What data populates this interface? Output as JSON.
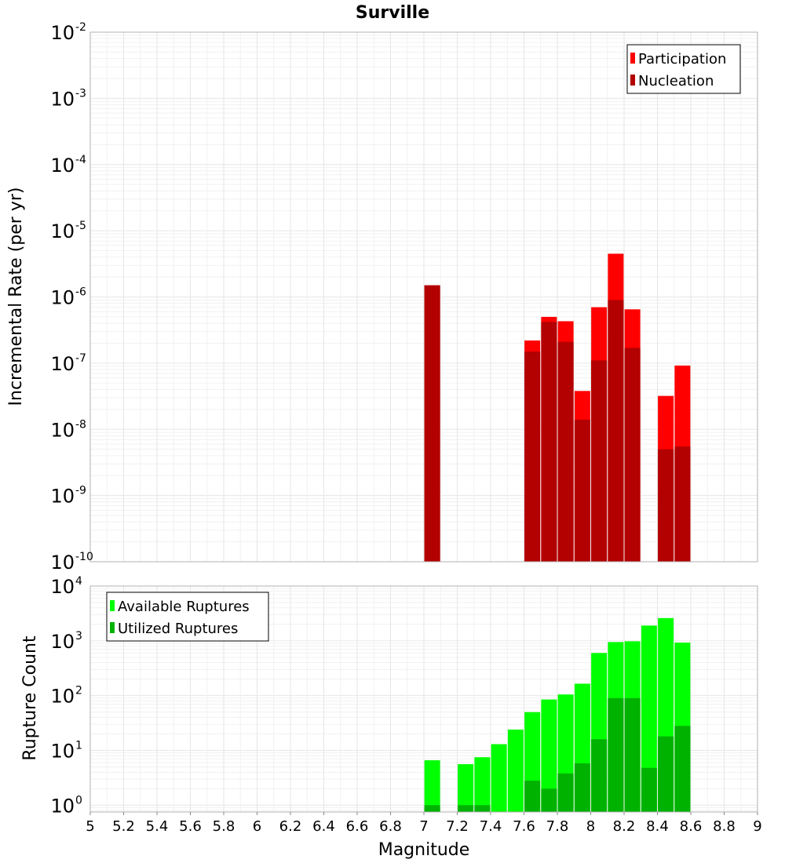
{
  "title": "Surville",
  "xlabel": "Magnitude",
  "colors": {
    "participation": "#ff0000",
    "nucleation": "#b30000",
    "available": "#00ff00",
    "utilized": "#00b200"
  },
  "chart_data": [
    {
      "type": "bar",
      "panel": "top",
      "ylabel": "Incremental Rate (per yr)",
      "yscale": "log",
      "ylim": [
        1e-10,
        0.01
      ],
      "xlim": [
        5,
        9
      ],
      "legend": {
        "placement": "top-right",
        "entries": [
          "Participation",
          "Nucleation"
        ]
      },
      "series": [
        {
          "name": "Participation",
          "x": [
            7.05,
            7.65,
            7.75,
            7.85,
            7.95,
            8.05,
            8.15,
            8.25,
            8.45,
            8.55
          ],
          "values": [
            1.5e-06,
            2.2e-07,
            5e-07,
            4.3e-07,
            3.8e-08,
            7e-07,
            4.5e-06,
            6.5e-07,
            3.2e-08,
            9.2e-08
          ]
        },
        {
          "name": "Nucleation",
          "x": [
            7.05,
            7.65,
            7.75,
            7.85,
            7.95,
            8.05,
            8.15,
            8.25,
            8.45,
            8.55
          ],
          "values": [
            1.5e-06,
            1.5e-07,
            4.2e-07,
            2.1e-07,
            1.4e-08,
            1.1e-07,
            9e-07,
            1.7e-07,
            5e-09,
            5.5e-09
          ]
        }
      ]
    },
    {
      "type": "bar",
      "panel": "bottom",
      "ylabel": "Rupture Count",
      "yscale": "log",
      "ylim": [
        0.75,
        10000
      ],
      "xlim": [
        5,
        9
      ],
      "legend": {
        "placement": "top-left",
        "entries": [
          "Available Ruptures",
          "Utilized Ruptures"
        ]
      },
      "series": [
        {
          "name": "Available Ruptures",
          "x": [
            7.05,
            7.25,
            7.35,
            7.45,
            7.55,
            7.65,
            7.75,
            7.85,
            7.95,
            8.05,
            8.15,
            8.25,
            8.35,
            8.45,
            8.55
          ],
          "values": [
            6.6,
            5.6,
            7.5,
            13,
            24,
            50,
            85,
            105,
            165,
            600,
            950,
            980,
            1900,
            2600,
            930
          ]
        },
        {
          "name": "Utilized Ruptures",
          "x": [
            7.05,
            7.25,
            7.35,
            7.65,
            7.75,
            7.85,
            7.95,
            8.05,
            8.15,
            8.25,
            8.35,
            8.45,
            8.55
          ],
          "values": [
            1,
            1,
            1,
            2.8,
            2,
            3.8,
            5.8,
            16,
            90,
            90,
            4.8,
            18,
            28
          ]
        }
      ]
    }
  ],
  "x_ticks": [
    "5",
    "5.2",
    "5.4",
    "5.6",
    "5.8",
    "6",
    "6.2",
    "6.4",
    "6.6",
    "6.8",
    "7",
    "7.2",
    "7.4",
    "7.6",
    "7.8",
    "8",
    "8.2",
    "8.4",
    "8.6",
    "8.8",
    "9"
  ],
  "top_y_ticks": [
    {
      "base": "10",
      "exp": "-2"
    },
    {
      "base": "10",
      "exp": "-3"
    },
    {
      "base": "10",
      "exp": "-4"
    },
    {
      "base": "10",
      "exp": "-5"
    },
    {
      "base": "10",
      "exp": "-6"
    },
    {
      "base": "10",
      "exp": "-7"
    },
    {
      "base": "10",
      "exp": "-8"
    },
    {
      "base": "10",
      "exp": "-9"
    },
    {
      "base": "10",
      "exp": "-10"
    }
  ],
  "bottom_y_ticks": [
    {
      "base": "10",
      "exp": "4"
    },
    {
      "base": "10",
      "exp": "3"
    },
    {
      "base": "10",
      "exp": "2"
    },
    {
      "base": "10",
      "exp": "1"
    },
    {
      "base": "10",
      "exp": "0"
    }
  ]
}
